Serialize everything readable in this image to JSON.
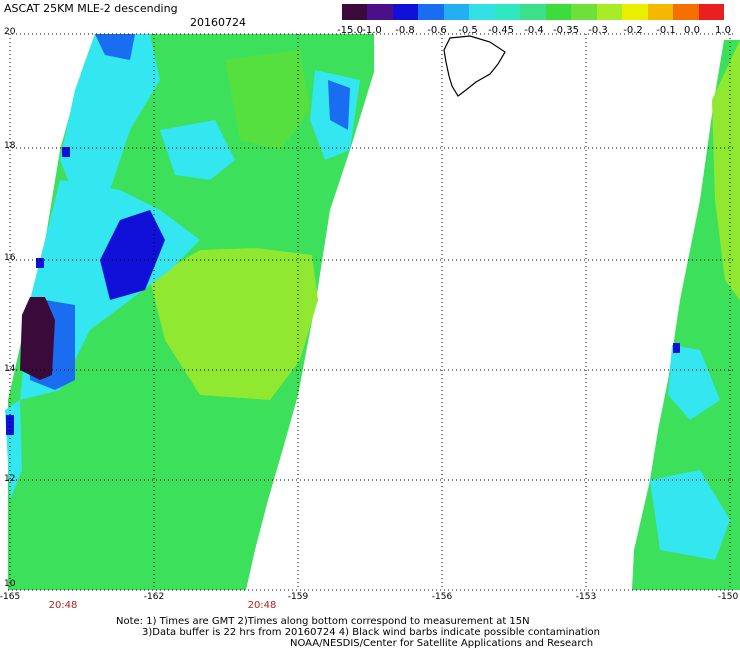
{
  "header": {
    "title": "ASCAT 25KM MLE-2 descending",
    "date": "20160724"
  },
  "colorbar": {
    "colors": [
      "#3a0a3a",
      "#4b0f8a",
      "#1010d8",
      "#1a6cf0",
      "#22b0f0",
      "#33e0e6",
      "#30e8c0",
      "#3ce08a",
      "#3bdc3b",
      "#6ee03a",
      "#a8ec28",
      "#e8f000",
      "#f5b800",
      "#f57000",
      "#e82020"
    ],
    "labels": [
      "-15.0",
      "-1.0",
      "-0.8",
      "-0.6",
      "-0.5",
      "-0.45",
      "-0.4",
      "-0.35",
      "-0.3",
      "-0.2",
      "-0.1",
      "0.0",
      "1.0"
    ]
  },
  "axes": {
    "y_labels": [
      "20",
      "18",
      "16",
      "14",
      "12",
      "10"
    ],
    "x_labels": [
      "-165",
      "-162",
      "-159",
      "-156",
      "-153",
      "-150"
    ]
  },
  "times": [
    "20:48",
    "20:48"
  ],
  "notes": {
    "line1": "Note: 1) Times are GMT 2)Times along bottom correspond to measurement at 15N",
    "line2": "3)Data buffer is 22 hrs from 20160724 4) Black wind barbs indicate possible contamination",
    "line3": "NOAA/NESDIS/Center for Satellite Applications and Research"
  },
  "swath_colors": {
    "dark": "#3a0a3a",
    "blue": "#1010d8",
    "lightblue": "#1a6cf0",
    "cyan": "#33e6f0",
    "teal": "#30e8c0",
    "green": "#3ce05a",
    "yellowgreen": "#90e830",
    "land": "#000000"
  }
}
